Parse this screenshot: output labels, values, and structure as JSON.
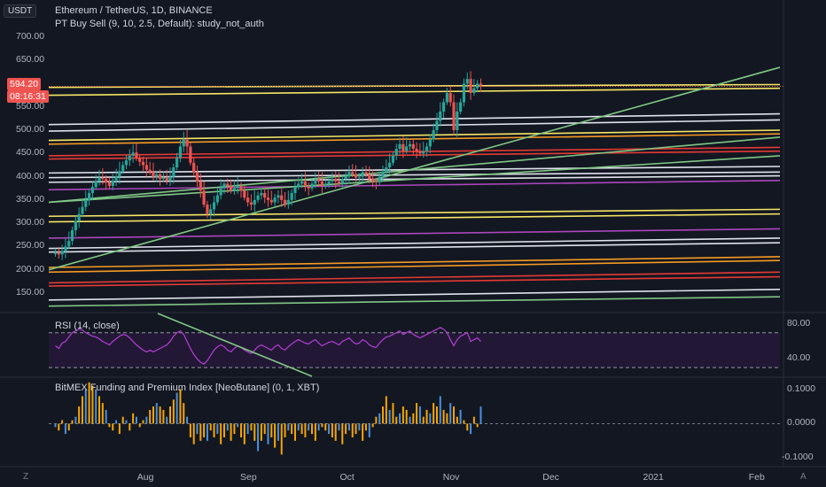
{
  "header": {
    "currency": "USDT",
    "title": "Ethereum / TetherUS, 1D, BINANCE",
    "study": "PT Buy Sell (9, 10, 2.5, Default): study_not_auth"
  },
  "price_tags": {
    "last_price": "594.20",
    "countdown": "08:16:31"
  },
  "panes": {
    "rsi_label": "RSI (14, close)",
    "funding_label": "BitMEX Funding and Premium Index [NeoButane] (0, 1, XBT)"
  },
  "corner_icons": {
    "left": "Z",
    "right": "A"
  },
  "colors": {
    "background": "#131722",
    "candle_up": "#26a69a",
    "candle_down": "#ef5350",
    "rsi_line": "#b33fd6",
    "rsi_fill": "#2a1a3d",
    "funding_pos": "#f7a600",
    "funding_neg": "#4a90e2",
    "yellow": "#f5e663",
    "white": "#e0e3eb",
    "orange": "#f59a23",
    "red": "#e53935",
    "purple": "#ab47bc",
    "green": "#81c784"
  },
  "chart_data": [
    {
      "type": "candlestick",
      "title": "Ethereum / TetherUS, 1D, BINANCE",
      "y_ticks": [
        "700.00",
        "650.00",
        "550.00",
        "500.00",
        "450.00",
        "400.00",
        "350.00",
        "300.00",
        "250.00",
        "200.00",
        "150.00"
      ],
      "x_ticks": [
        "Aug",
        "Sep",
        "Oct",
        "Nov",
        "Dec",
        "2021",
        "Feb"
      ],
      "ylim": [
        110,
        715
      ],
      "x_range_days": [
        0,
        220
      ],
      "closes": [
        238,
        233,
        240,
        250,
        262,
        285,
        305,
        320,
        335,
        350,
        365,
        378,
        390,
        398,
        395,
        388,
        380,
        392,
        400,
        412,
        425,
        435,
        445,
        452,
        440,
        432,
        425,
        415,
        410,
        400,
        405,
        395,
        398,
        392,
        400,
        420,
        440,
        465,
        480,
        465,
        430,
        410,
        390,
        370,
        340,
        320,
        330,
        345,
        360,
        375,
        385,
        380,
        370,
        375,
        380,
        370,
        355,
        345,
        340,
        350,
        360,
        365,
        355,
        350,
        345,
        355,
        360,
        350,
        340,
        350,
        365,
        378,
        385,
        390,
        380,
        375,
        385,
        395,
        390,
        380,
        385,
        390,
        395,
        390,
        385,
        395,
        400,
        410,
        405,
        398,
        400,
        410,
        405,
        395,
        390,
        388,
        400,
        410,
        420,
        430,
        445,
        460,
        470,
        455,
        465,
        470,
        460,
        455,
        450,
        455,
        465,
        480,
        500,
        520,
        540,
        560,
        580,
        560,
        500,
        540,
        560,
        600,
        610,
        580,
        590,
        600,
        595
      ],
      "reference_lines": [
        {
          "color": "yellow",
          "d0": 592,
          "d1": 598
        },
        {
          "color": "yellow",
          "d0": 575,
          "d1": 590
        },
        {
          "color": "white",
          "d0": 512,
          "d1": 535
        },
        {
          "color": "white",
          "d0": 498,
          "d1": 522
        },
        {
          "color": "yellow",
          "d0": 478,
          "d1": 500
        },
        {
          "color": "orange",
          "d0": 470,
          "d1": 492
        },
        {
          "color": "red",
          "d0": 445,
          "d1": 463
        },
        {
          "color": "red",
          "d0": 438,
          "d1": 455
        },
        {
          "color": "white",
          "d0": 408,
          "d1": 422
        },
        {
          "color": "white",
          "d0": 398,
          "d1": 410
        },
        {
          "color": "white",
          "d0": 388,
          "d1": 402
        },
        {
          "color": "purple",
          "d0": 372,
          "d1": 392
        },
        {
          "color": "yellow",
          "d0": 315,
          "d1": 330
        },
        {
          "color": "yellow",
          "d0": 303,
          "d1": 320
        },
        {
          "color": "purple",
          "d0": 268,
          "d1": 288
        },
        {
          "color": "white",
          "d0": 246,
          "d1": 268
        },
        {
          "color": "white",
          "d0": 238,
          "d1": 258
        },
        {
          "color": "orange",
          "d0": 205,
          "d1": 228
        },
        {
          "color": "orange",
          "d0": 195,
          "d1": 220
        },
        {
          "color": "red",
          "d0": 172,
          "d1": 195
        },
        {
          "color": "red",
          "d0": 165,
          "d1": 185
        },
        {
          "color": "white",
          "d0": 135,
          "d1": 158
        },
        {
          "color": "green",
          "d0": 122,
          "d1": 142
        },
        {
          "color": "green",
          "d0": 200,
          "d1": 635
        },
        {
          "color": "green",
          "d0": 345,
          "d1": 485
        },
        {
          "color": "green",
          "d0": 345,
          "d1": 445
        }
      ]
    },
    {
      "type": "line",
      "title": "RSI (14, close)",
      "y_ticks": [
        "80.00",
        "40.00"
      ],
      "band": [
        30,
        70
      ],
      "ylim": [
        20,
        90
      ],
      "values": [
        55,
        52,
        58,
        60,
        65,
        70,
        72,
        74,
        73,
        70,
        68,
        66,
        65,
        63,
        60,
        58,
        56,
        60,
        63,
        66,
        68,
        67,
        64,
        60,
        56,
        53,
        50,
        48,
        50,
        48,
        50,
        52,
        54,
        56,
        60,
        66,
        70,
        72,
        68,
        60,
        52,
        45,
        40,
        36,
        34,
        38,
        44,
        50,
        54,
        56,
        54,
        50,
        48,
        52,
        55,
        53,
        50,
        48,
        46,
        50,
        54,
        56,
        54,
        52,
        50,
        54,
        56,
        52,
        50,
        54,
        57,
        60,
        62,
        60,
        58,
        57,
        60,
        62,
        58,
        55,
        57,
        59,
        60,
        58,
        56,
        60,
        62,
        64,
        60,
        57,
        58,
        62,
        60,
        56,
        54,
        53,
        58,
        62,
        65,
        66,
        68,
        70,
        72,
        68,
        70,
        72,
        68,
        66,
        64,
        66,
        68,
        70,
        72,
        74,
        76,
        74,
        70,
        62,
        55,
        62,
        66,
        68,
        70,
        60,
        62,
        64,
        60
      ]
    },
    {
      "type": "bar",
      "title": "BitMEX Funding and Premium Index [NeoButane] (0, 1, XBT)",
      "y_ticks": [
        "0.1000",
        "0.0000",
        "-0.1000"
      ],
      "ylim": [
        -0.12,
        0.13
      ],
      "values": [
        -0.01,
        -0.02,
        0.01,
        -0.03,
        -0.02,
        0.01,
        0.02,
        0.05,
        0.08,
        0.1,
        0.12,
        0.11,
        0.1,
        0.08,
        0.06,
        0.04,
        -0.01,
        -0.02,
        0.01,
        -0.03,
        0.02,
        0.01,
        -0.02,
        0.03,
        0.02,
        -0.01,
        0.01,
        0.02,
        0.04,
        0.05,
        0.06,
        0.05,
        0.04,
        0.02,
        0.05,
        0.07,
        0.09,
        0.1,
        0.06,
        0.02,
        -0.04,
        -0.06,
        -0.03,
        -0.05,
        -0.04,
        -0.05,
        -0.02,
        -0.04,
        -0.03,
        -0.06,
        -0.04,
        -0.02,
        -0.05,
        -0.03,
        -0.01,
        -0.04,
        -0.06,
        -0.03,
        -0.02,
        -0.05,
        -0.08,
        -0.05,
        -0.03,
        -0.06,
        -0.04,
        -0.07,
        -0.05,
        -0.09,
        -0.04,
        -0.02,
        -0.03,
        -0.05,
        -0.02,
        -0.03,
        -0.04,
        -0.02,
        -0.03,
        -0.05,
        -0.02,
        -0.01,
        -0.02,
        -0.03,
        -0.04,
        -0.05,
        -0.02,
        -0.06,
        -0.03,
        -0.02,
        -0.04,
        -0.03,
        -0.02,
        -0.05,
        -0.02,
        -0.04,
        -0.01,
        0.02,
        0.03,
        0.05,
        0.08,
        0.04,
        0.06,
        0.02,
        0.03,
        0.05,
        0.04,
        0.02,
        0.03,
        0.06,
        0.05,
        0.02,
        0.04,
        0.03,
        0.06,
        0.05,
        0.08,
        0.04,
        0.03,
        0.06,
        0.05,
        0.02,
        0.04,
        0.01,
        -0.02,
        -0.03,
        0.02,
        -0.01,
        0.05
      ]
    }
  ]
}
